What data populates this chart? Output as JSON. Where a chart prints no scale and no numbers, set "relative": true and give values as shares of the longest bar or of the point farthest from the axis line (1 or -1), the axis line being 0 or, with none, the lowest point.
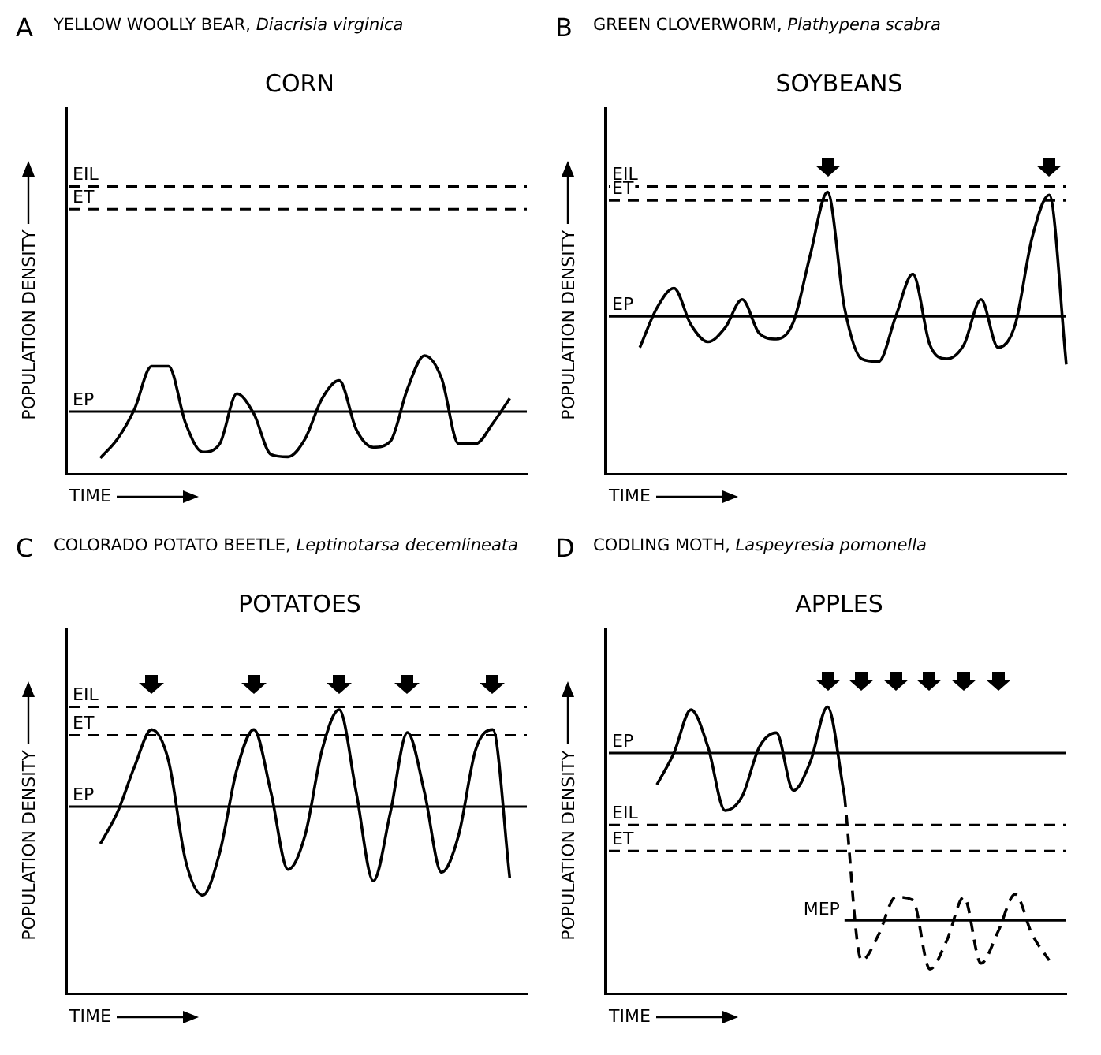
{
  "chart_data": [
    {
      "type": "line",
      "title": "YELLOW WOOLLY BEAR, Diacrisia virginica",
      "subtitle": "CORN",
      "xlabel": "TIME",
      "ylabel": "POPULATION DENSITY",
      "annotations": [
        "A"
      ],
      "relative": true,
      "legend": false,
      "grid": false,
      "tick_labels": false,
      "marker": "none",
      "categories": [
        null,
        null,
        null,
        null,
        null,
        null,
        null,
        null,
        null,
        null,
        null,
        null,
        null,
        null,
        null,
        null,
        null,
        null,
        null,
        null,
        null,
        null,
        null,
        null,
        null,
        null,
        null,
        null
      ],
      "series": [
        {
          "color": "#000000",
          "values": [
            null,
            null,
            0.14,
            0.3,
            0.55,
            0.91,
            0.91,
            0.43,
            0.19,
            0.26,
            0.68,
            0.51,
            0.17,
            0.15,
            0.3,
            0.64,
            0.79,
            0.38,
            0.23,
            0.28,
            0.72,
            1,
            0.81,
            0.26,
            0.26,
            0.43,
            0.64,
            null
          ]
        }
      ],
      "ref_lines": [
        {
          "axis": "y",
          "value": 2.42,
          "label": "EIL",
          "line_style": "dashed"
        },
        {
          "axis": "y",
          "value": 2.23,
          "label": "ET",
          "line_style": "dashed"
        },
        {
          "axis": "y",
          "value": 0.53,
          "label": "EP",
          "line_style": "solid"
        }
      ]
    },
    {
      "type": "line",
      "title": "GREEN CLOVERWORM, Plathypena scabra",
      "subtitle": "SOYBEANS",
      "xlabel": "TIME",
      "ylabel": "POPULATION DENSITY",
      "annotations": [
        "B"
      ],
      "relative": true,
      "legend": false,
      "grid": false,
      "tick_labels": false,
      "marker": "none",
      "categories": [
        null,
        null,
        null,
        null,
        null,
        null,
        null,
        null,
        null,
        null,
        null,
        null,
        null,
        null,
        null,
        null,
        null,
        null,
        null,
        null,
        null,
        null,
        null,
        null,
        null,
        null,
        null,
        null
      ],
      "series": [
        {
          "color": "#000000",
          "values": [
            null,
            null,
            0.45,
            0.59,
            0.66,
            0.53,
            0.47,
            0.52,
            0.62,
            0.5,
            0.48,
            0.54,
            0.78,
            1,
            0.59,
            0.41,
            0.4,
            0.56,
            0.71,
            0.46,
            0.41,
            0.46,
            0.62,
            0.45,
            0.53,
            0.84,
            0.99,
            0.39
          ]
        }
      ],
      "ref_lines": [
        {
          "axis": "y",
          "value": 1.02,
          "label": "EIL",
          "line_style": "dashed"
        },
        {
          "axis": "y",
          "value": 0.97,
          "label": "ET",
          "line_style": "dashed"
        },
        {
          "axis": "y",
          "value": 0.56,
          "label": "EP",
          "line_style": "solid"
        }
      ]
    },
    {
      "type": "line",
      "title": "COLORADO POTATO BEETLE, Leptinotarsa decemlineata",
      "subtitle": "POTATOES",
      "xlabel": "TIME",
      "ylabel": "POPULATION DENSITY",
      "annotations": [
        "C"
      ],
      "relative": true,
      "legend": false,
      "grid": false,
      "tick_labels": false,
      "marker": "none",
      "categories": [
        null,
        null,
        null,
        null,
        null,
        null,
        null,
        null,
        null,
        null,
        null,
        null,
        null,
        null,
        null,
        null,
        null,
        null,
        null,
        null,
        null,
        null,
        null,
        null,
        null,
        null,
        null,
        null
      ],
      "series": [
        {
          "color": "#000000",
          "values": [
            null,
            null,
            0.53,
            0.64,
            0.8,
            0.93,
            0.82,
            0.47,
            0.35,
            0.5,
            0.79,
            0.93,
            0.71,
            0.44,
            0.56,
            0.86,
            1,
            0.71,
            0.4,
            0.64,
            0.92,
            0.71,
            0.43,
            0.56,
            0.86,
            0.93,
            0.41,
            null
          ]
        }
      ],
      "ref_lines": [
        {
          "axis": "y",
          "value": 1.01,
          "label": "EIL",
          "line_style": "dashed"
        },
        {
          "axis": "y",
          "value": 0.91,
          "label": "ET",
          "line_style": "dashed"
        },
        {
          "axis": "y",
          "value": 0.66,
          "label": "EP",
          "line_style": "solid"
        }
      ]
    },
    {
      "type": "line",
      "title": "CODLING MOTH, Laspeyresia pomonella",
      "subtitle": "APPLES",
      "xlabel": "TIME",
      "ylabel": "POPULATION DENSITY",
      "annotations": [
        "D"
      ],
      "relative": true,
      "legend": false,
      "grid": false,
      "tick_labels": false,
      "marker": "none",
      "categories": [
        null,
        null,
        null,
        null,
        null,
        null,
        null,
        null,
        null,
        null,
        null,
        null,
        null,
        null,
        null,
        null,
        null,
        null,
        null,
        null,
        null,
        null,
        null,
        null,
        null,
        null,
        null,
        null
      ],
      "series": [
        {
          "color": "#000000",
          "line_style": "solid",
          "values": [
            null,
            null,
            null,
            0.73,
            0.84,
            0.99,
            0.86,
            0.64,
            0.69,
            0.86,
            0.91,
            0.71,
            0.81,
            1,
            0.69,
            null,
            null,
            null,
            null,
            null,
            null,
            null,
            null,
            null,
            null,
            null,
            null,
            null
          ]
        },
        {
          "color": "#000000",
          "line_style": "dashed",
          "values": [
            null,
            null,
            null,
            null,
            null,
            null,
            null,
            null,
            null,
            null,
            null,
            null,
            null,
            null,
            0.69,
            0.12,
            0.21,
            0.34,
            0.33,
            0.09,
            0.19,
            0.34,
            0.11,
            0.22,
            0.35,
            0.21,
            0.12,
            null
          ]
        },
        {
          "name": "MEP",
          "color": "#000000",
          "line_style": "solid",
          "values": [
            null,
            null,
            null,
            null,
            null,
            null,
            null,
            null,
            null,
            null,
            null,
            null,
            null,
            null,
            0.26,
            0.26,
            0.26,
            0.26,
            0.26,
            0.26,
            0.26,
            0.26,
            0.26,
            0.26,
            0.26,
            0.26,
            0.26,
            0.26
          ]
        }
      ],
      "ref_lines": [
        {
          "axis": "y",
          "value": 0.84,
          "label": "EP",
          "line_style": "solid"
        },
        {
          "axis": "y",
          "value": 0.59,
          "label": "EIL",
          "line_style": "dashed"
        },
        {
          "axis": "y",
          "value": 0.5,
          "label": "ET",
          "line_style": "dashed"
        }
      ]
    }
  ]
}
